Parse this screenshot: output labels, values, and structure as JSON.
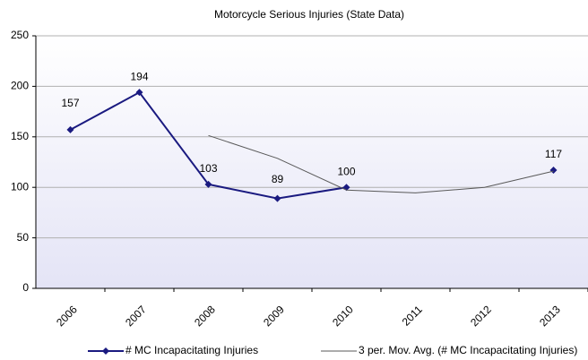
{
  "chart_data": {
    "type": "line",
    "title": "Motorcycle Serious Injuries (State Data)",
    "categories": [
      "2006",
      "2007",
      "2008",
      "2009",
      "2010",
      "2011",
      "2012",
      "2013"
    ],
    "series": [
      {
        "name": "# MC Incapacitating Injuries",
        "color": "#1a1a80",
        "values": [
          157,
          194,
          103,
          89,
          100,
          null,
          null,
          117
        ],
        "markers": true,
        "data_labels": true
      },
      {
        "name": "3 per. Mov. Avg. (# MC Incapacitating Injuries)",
        "color": "#595959",
        "values": [
          null,
          null,
          151.3,
          128.7,
          97.3,
          94.5,
          100,
          116
        ],
        "markers": false,
        "data_labels": false
      }
    ],
    "ylim": [
      0,
      250
    ],
    "yticks": [
      0,
      50,
      100,
      150,
      200,
      250
    ],
    "grid": true,
    "legend": "bottom"
  }
}
